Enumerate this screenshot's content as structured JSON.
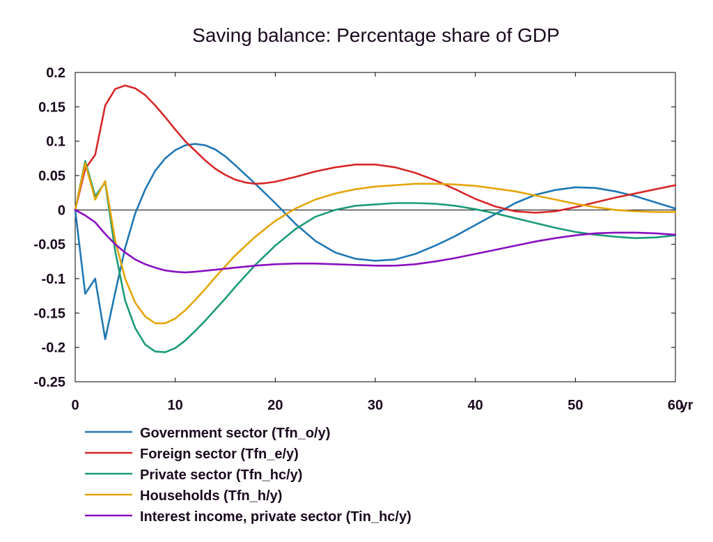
{
  "chart_data": {
    "type": "line",
    "title": "Saving balance: Percentage share of GDP",
    "x_unit": "yr",
    "xlim": [
      0,
      60
    ],
    "ylim": [
      -0.25,
      0.2
    ],
    "x_ticks": [
      0,
      10,
      20,
      30,
      40,
      50,
      60
    ],
    "x_tick_labels": [
      "0",
      "10",
      "20",
      "30",
      "40",
      "50",
      "60"
    ],
    "y_ticks": [
      0.2,
      0.15,
      0.1,
      0.05,
      0,
      -0.05,
      -0.1,
      -0.15,
      -0.2,
      -0.25
    ],
    "y_tick_labels": [
      "0.2",
      "0.15",
      "0.1",
      "0.05",
      "0",
      "-0.05",
      "-0.1",
      "-0.15",
      "-0.2",
      "-0.25"
    ],
    "grid": false,
    "zero_line": true,
    "legend_position": "bottom",
    "series": [
      {
        "name": "Government sector (Tfn_o/y)",
        "color": "#1f77b4",
        "points": [
          [
            0,
            0
          ],
          [
            1,
            -0.122
          ],
          [
            2,
            -0.1
          ],
          [
            3,
            -0.188
          ],
          [
            4,
            -0.12
          ],
          [
            5,
            -0.055
          ],
          [
            6,
            -0.005
          ],
          [
            7,
            0.03
          ],
          [
            8,
            0.057
          ],
          [
            9,
            0.075
          ],
          [
            10,
            0.087
          ],
          [
            11,
            0.094
          ],
          [
            12,
            0.096
          ],
          [
            13,
            0.094
          ],
          [
            14,
            0.088
          ],
          [
            15,
            0.078
          ],
          [
            16,
            0.065
          ],
          [
            18,
            0.038
          ],
          [
            20,
            0.01
          ],
          [
            22,
            -0.02
          ],
          [
            24,
            -0.045
          ],
          [
            26,
            -0.062
          ],
          [
            28,
            -0.071
          ],
          [
            30,
            -0.074
          ],
          [
            32,
            -0.072
          ],
          [
            34,
            -0.064
          ],
          [
            36,
            -0.052
          ],
          [
            38,
            -0.038
          ],
          [
            40,
            -0.022
          ],
          [
            42,
            -0.006
          ],
          [
            44,
            0.01
          ],
          [
            46,
            0.022
          ],
          [
            48,
            0.029
          ],
          [
            50,
            0.033
          ],
          [
            52,
            0.032
          ],
          [
            54,
            0.027
          ],
          [
            56,
            0.02
          ],
          [
            58,
            0.011
          ],
          [
            60,
            0.002
          ]
        ]
      },
      {
        "name": "Foreign sector (Tfn_e/y)",
        "color": "#d62728",
        "points": [
          [
            0,
            0
          ],
          [
            1,
            0.06
          ],
          [
            2,
            0.08
          ],
          [
            3,
            0.152
          ],
          [
            4,
            0.176
          ],
          [
            5,
            0.181
          ],
          [
            6,
            0.177
          ],
          [
            7,
            0.167
          ],
          [
            8,
            0.152
          ],
          [
            9,
            0.135
          ],
          [
            10,
            0.117
          ],
          [
            11,
            0.1
          ],
          [
            12,
            0.086
          ],
          [
            13,
            0.072
          ],
          [
            14,
            0.06
          ],
          [
            15,
            0.051
          ],
          [
            16,
            0.044
          ],
          [
            17,
            0.04
          ],
          [
            18,
            0.038
          ],
          [
            19,
            0.039
          ],
          [
            20,
            0.041
          ],
          [
            22,
            0.048
          ],
          [
            24,
            0.056
          ],
          [
            26,
            0.062
          ],
          [
            28,
            0.066
          ],
          [
            30,
            0.066
          ],
          [
            32,
            0.062
          ],
          [
            34,
            0.054
          ],
          [
            36,
            0.043
          ],
          [
            38,
            0.03
          ],
          [
            40,
            0.016
          ],
          [
            42,
            0.005
          ],
          [
            44,
            -0.002
          ],
          [
            46,
            -0.004
          ],
          [
            48,
            -0.002
          ],
          [
            50,
            0.004
          ],
          [
            52,
            0.011
          ],
          [
            54,
            0.018
          ],
          [
            56,
            0.024
          ],
          [
            58,
            0.03
          ],
          [
            60,
            0.036
          ]
        ]
      },
      {
        "name": "Private sector (Tfn_hc/y)",
        "color": "#1a9a78",
        "points": [
          [
            0,
            0
          ],
          [
            1,
            0.071
          ],
          [
            2,
            0.02
          ],
          [
            3,
            0.04
          ],
          [
            4,
            -0.06
          ],
          [
            5,
            -0.132
          ],
          [
            6,
            -0.172
          ],
          [
            7,
            -0.196
          ],
          [
            8,
            -0.206
          ],
          [
            9,
            -0.207
          ],
          [
            10,
            -0.201
          ],
          [
            11,
            -0.19
          ],
          [
            12,
            -0.176
          ],
          [
            13,
            -0.161
          ],
          [
            14,
            -0.145
          ],
          [
            15,
            -0.129
          ],
          [
            16,
            -0.112
          ],
          [
            18,
            -0.08
          ],
          [
            20,
            -0.052
          ],
          [
            22,
            -0.028
          ],
          [
            24,
            -0.01
          ],
          [
            26,
            0.0
          ],
          [
            28,
            0.006
          ],
          [
            30,
            0.008
          ],
          [
            32,
            0.01
          ],
          [
            34,
            0.01
          ],
          [
            36,
            0.009
          ],
          [
            38,
            0.006
          ],
          [
            40,
            0.001
          ],
          [
            42,
            -0.005
          ],
          [
            44,
            -0.012
          ],
          [
            46,
            -0.019
          ],
          [
            48,
            -0.026
          ],
          [
            50,
            -0.032
          ],
          [
            52,
            -0.036
          ],
          [
            54,
            -0.039
          ],
          [
            56,
            -0.041
          ],
          [
            58,
            -0.04
          ],
          [
            60,
            -0.037
          ]
        ]
      },
      {
        "name": "Households (Tfn_h/y)",
        "color": "#e5a50a",
        "points": [
          [
            0,
            0
          ],
          [
            1,
            0.068
          ],
          [
            2,
            0.015
          ],
          [
            3,
            0.042
          ],
          [
            4,
            -0.045
          ],
          [
            5,
            -0.1
          ],
          [
            6,
            -0.135
          ],
          [
            7,
            -0.155
          ],
          [
            8,
            -0.165
          ],
          [
            9,
            -0.165
          ],
          [
            10,
            -0.158
          ],
          [
            11,
            -0.146
          ],
          [
            12,
            -0.131
          ],
          [
            13,
            -0.115
          ],
          [
            14,
            -0.098
          ],
          [
            15,
            -0.082
          ],
          [
            16,
            -0.066
          ],
          [
            18,
            -0.039
          ],
          [
            20,
            -0.016
          ],
          [
            22,
            0.002
          ],
          [
            24,
            0.015
          ],
          [
            26,
            0.024
          ],
          [
            28,
            0.03
          ],
          [
            30,
            0.034
          ],
          [
            32,
            0.036
          ],
          [
            34,
            0.038
          ],
          [
            36,
            0.038
          ],
          [
            38,
            0.037
          ],
          [
            40,
            0.035
          ],
          [
            42,
            0.031
          ],
          [
            44,
            0.027
          ],
          [
            46,
            0.021
          ],
          [
            48,
            0.015
          ],
          [
            50,
            0.009
          ],
          [
            52,
            0.004
          ],
          [
            54,
            0.0
          ],
          [
            56,
            -0.002
          ],
          [
            58,
            -0.003
          ],
          [
            60,
            -0.003
          ]
        ]
      },
      {
        "name": "Interest income, private sector (Tin_hc/y)",
        "color": "#8a0fc0",
        "points": [
          [
            0,
            0
          ],
          [
            1,
            -0.008
          ],
          [
            2,
            -0.018
          ],
          [
            3,
            -0.035
          ],
          [
            4,
            -0.05
          ],
          [
            5,
            -0.062
          ],
          [
            6,
            -0.072
          ],
          [
            7,
            -0.079
          ],
          [
            8,
            -0.084
          ],
          [
            9,
            -0.088
          ],
          [
            10,
            -0.09
          ],
          [
            11,
            -0.091
          ],
          [
            12,
            -0.09
          ],
          [
            14,
            -0.087
          ],
          [
            16,
            -0.084
          ],
          [
            18,
            -0.081
          ],
          [
            20,
            -0.079
          ],
          [
            22,
            -0.078
          ],
          [
            24,
            -0.078
          ],
          [
            26,
            -0.079
          ],
          [
            28,
            -0.08
          ],
          [
            30,
            -0.081
          ],
          [
            32,
            -0.081
          ],
          [
            34,
            -0.079
          ],
          [
            36,
            -0.075
          ],
          [
            38,
            -0.07
          ],
          [
            40,
            -0.064
          ],
          [
            42,
            -0.058
          ],
          [
            44,
            -0.052
          ],
          [
            46,
            -0.046
          ],
          [
            48,
            -0.041
          ],
          [
            50,
            -0.037
          ],
          [
            52,
            -0.034
          ],
          [
            54,
            -0.033
          ],
          [
            56,
            -0.033
          ],
          [
            58,
            -0.034
          ],
          [
            60,
            -0.036
          ]
        ]
      }
    ]
  }
}
